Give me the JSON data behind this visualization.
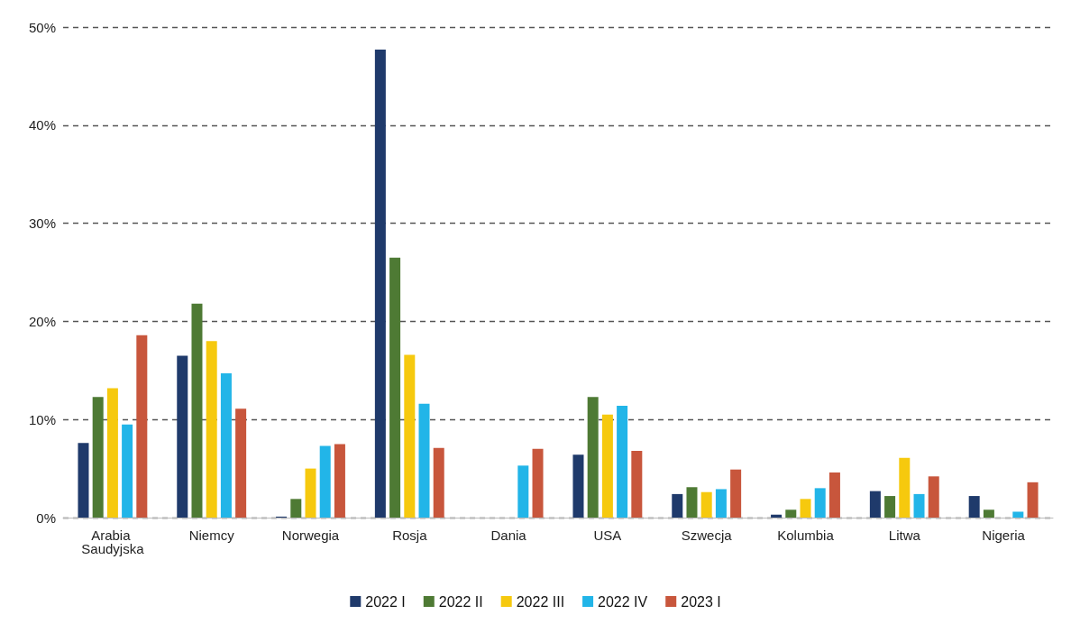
{
  "chart_data": {
    "type": "bar",
    "categories": [
      "Arabia Saudyjska",
      "Niemcy",
      "Norwegia",
      "Rosja",
      "Dania",
      "USA",
      "Szwecja",
      "Kolumbia",
      "Litwa",
      "Nigeria"
    ],
    "series": [
      {
        "name": "2022 I",
        "color": "#1f3a6b",
        "values": [
          7.6,
          16.5,
          0.1,
          47.7,
          0,
          6.4,
          2.4,
          0.3,
          2.7,
          2.2
        ]
      },
      {
        "name": "2022 II",
        "color": "#4e7a34",
        "values": [
          12.3,
          21.8,
          1.9,
          26.5,
          0,
          12.3,
          3.1,
          0.8,
          2.2,
          0.8
        ]
      },
      {
        "name": "2022 III",
        "color": "#f6c90e",
        "values": [
          13.2,
          18.0,
          5.0,
          16.6,
          0,
          10.5,
          2.6,
          1.9,
          6.1,
          0
        ]
      },
      {
        "name": "2022 IV",
        "color": "#22b5e8",
        "values": [
          9.5,
          14.7,
          7.3,
          11.6,
          5.3,
          11.4,
          2.9,
          3.0,
          2.4,
          0.6
        ]
      },
      {
        "name": "2023 I",
        "color": "#c8563c",
        "values": [
          18.6,
          11.1,
          7.5,
          7.1,
          7.0,
          6.8,
          4.9,
          4.6,
          4.2,
          3.6
        ]
      }
    ],
    "ylim": [
      0,
      50
    ],
    "yticks": [
      {
        "value": 0,
        "label": "0%"
      },
      {
        "value": 10,
        "label": "10%"
      },
      {
        "value": 20,
        "label": "20%"
      },
      {
        "value": 30,
        "label": "30%"
      },
      {
        "value": 40,
        "label": "40%"
      },
      {
        "value": 50,
        "label": "50%"
      }
    ],
    "grid": "y",
    "legend": "bottom"
  }
}
